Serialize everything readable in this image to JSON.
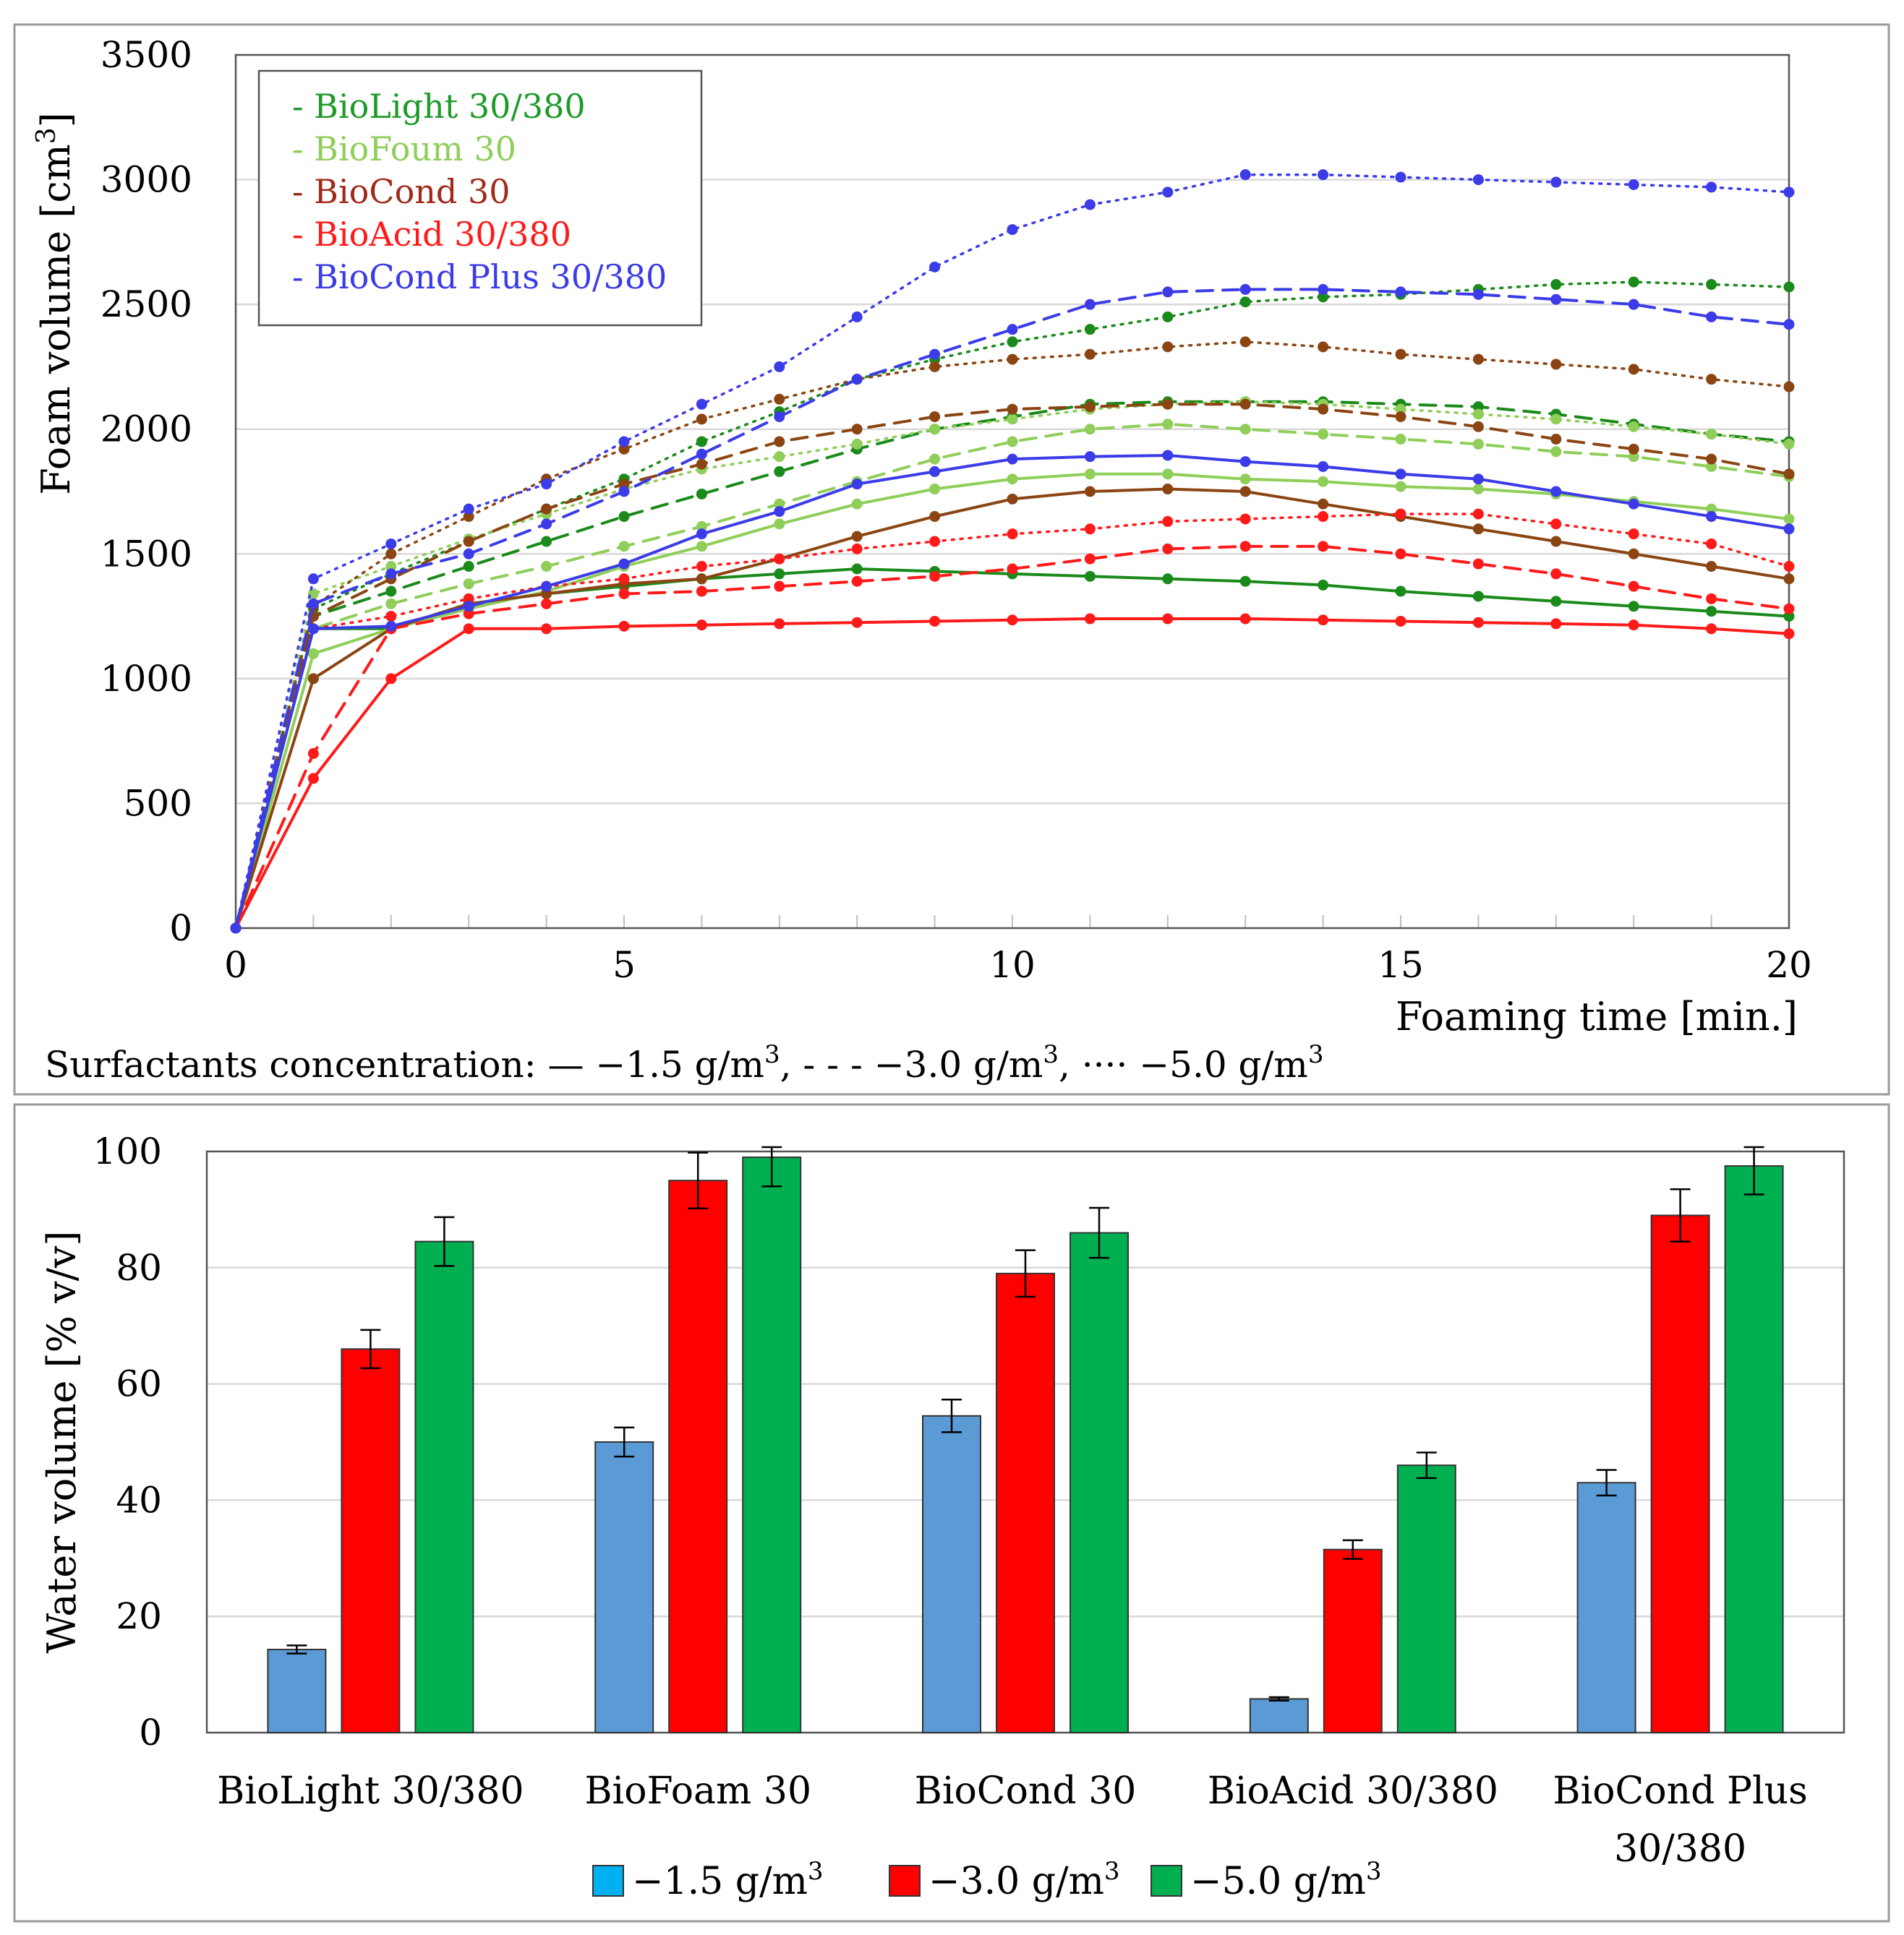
{
  "chart_data": [
    {
      "type": "line",
      "title": "",
      "xlabel": "Foaming time [min.]",
      "ylabel": "Foam volume [cm",
      "ylabel_sup": "3",
      "ylabel_end": "]",
      "xlim": [
        0,
        20
      ],
      "ylim": [
        0,
        3500
      ],
      "xticks": [
        0,
        5,
        10,
        15,
        20
      ],
      "yticks": [
        0,
        500,
        1000,
        1500,
        2000,
        2500,
        3000,
        3500
      ],
      "grid": true,
      "legend_position": "top-left",
      "legend": [
        {
          "label": "- BioLight 30/380",
          "color": "#1e9a2a"
        },
        {
          "label": "- BioFoum 30",
          "color": "#8fce59"
        },
        {
          "label": "- BioCond 30",
          "color": "#a02a1a"
        },
        {
          "label": "- BioAcid 30/380",
          "color": "#ff1a1a"
        },
        {
          "label": "- BioCond Plus 30/380",
          "color": "#3b3be8"
        }
      ],
      "note": {
        "prefix": "Surfactants concentration: ",
        "items": [
          {
            "symbol": "—",
            "text": " −1.5 g/m",
            "sup": "3",
            "sep": ", "
          },
          {
            "symbol": "- - -",
            "text": "  −3.0 g/m",
            "sup": "3",
            "sep": ", "
          },
          {
            "symbol": "····",
            "text": " −5.0 g/m",
            "sup": "3",
            "sep": ""
          }
        ]
      },
      "x": [
        0,
        1,
        2,
        3,
        4,
        5,
        6,
        7,
        8,
        9,
        10,
        11,
        12,
        13,
        14,
        15,
        16,
        17,
        18,
        19,
        20
      ],
      "series": [
        {
          "name": "BioLight 30/380 −1.5 g/m3",
          "color": "#1a8a1a",
          "dash": "solid",
          "values": [
            0,
            1200,
            1200,
            1300,
            1340,
            1370,
            1400,
            1420,
            1440,
            1430,
            1420,
            1410,
            1400,
            1390,
            1375,
            1350,
            1330,
            1310,
            1290,
            1270,
            1250
          ]
        },
        {
          "name": "BioLight 30/380 −3.0 g/m3",
          "color": "#1a8a1a",
          "dash": "dashed",
          "values": [
            0,
            1250,
            1350,
            1450,
            1550,
            1650,
            1740,
            1830,
            1920,
            2000,
            2050,
            2100,
            2110,
            2110,
            2110,
            2100,
            2090,
            2060,
            2020,
            1980,
            1950
          ]
        },
        {
          "name": "BioLight 30/380 −5.0 g/m3",
          "color": "#1a8a1a",
          "dash": "dotted",
          "values": [
            0,
            1280,
            1420,
            1550,
            1680,
            1800,
            1950,
            2070,
            2200,
            2280,
            2350,
            2400,
            2450,
            2510,
            2530,
            2540,
            2560,
            2580,
            2590,
            2580,
            2570
          ]
        },
        {
          "name": "BioFoum 30 −1.5 g/m3",
          "color": "#8fce59",
          "dash": "solid",
          "values": [
            0,
            1100,
            1200,
            1280,
            1350,
            1450,
            1530,
            1620,
            1700,
            1760,
            1800,
            1820,
            1820,
            1800,
            1790,
            1770,
            1760,
            1740,
            1710,
            1680,
            1640
          ]
        },
        {
          "name": "BioFoum 30 −3.0 g/m3",
          "color": "#8fce59",
          "dash": "dashed",
          "values": [
            0,
            1200,
            1300,
            1380,
            1450,
            1530,
            1610,
            1700,
            1790,
            1880,
            1950,
            2000,
            2020,
            2000,
            1980,
            1960,
            1940,
            1910,
            1890,
            1850,
            1810
          ]
        },
        {
          "name": "BioFoum 30 −5.0 g/m3",
          "color": "#8fce59",
          "dash": "dotted",
          "values": [
            0,
            1340,
            1450,
            1560,
            1660,
            1760,
            1840,
            1890,
            1940,
            2000,
            2040,
            2080,
            2100,
            2110,
            2100,
            2080,
            2060,
            2040,
            2010,
            1980,
            1940
          ]
        },
        {
          "name": "BioCond 30 −1.5 g/m3",
          "color": "#8b4513",
          "dash": "solid",
          "values": [
            0,
            1000,
            1200,
            1300,
            1340,
            1380,
            1400,
            1480,
            1570,
            1650,
            1720,
            1750,
            1760,
            1750,
            1700,
            1650,
            1600,
            1550,
            1500,
            1450,
            1400
          ]
        },
        {
          "name": "BioCond 30 −3.0 g/m3",
          "color": "#8b4513",
          "dash": "dashed",
          "values": [
            0,
            1250,
            1400,
            1550,
            1680,
            1780,
            1860,
            1950,
            2000,
            2050,
            2080,
            2090,
            2100,
            2100,
            2080,
            2050,
            2010,
            1960,
            1920,
            1880,
            1820
          ]
        },
        {
          "name": "BioCond 30 −5.0 g/m3",
          "color": "#8b4513",
          "dash": "dotted",
          "values": [
            0,
            1290,
            1500,
            1650,
            1800,
            1920,
            2040,
            2120,
            2200,
            2250,
            2280,
            2300,
            2330,
            2350,
            2330,
            2300,
            2280,
            2260,
            2240,
            2200,
            2170
          ]
        },
        {
          "name": "BioAcid 30/380 −1.5 g/m3",
          "color": "#ff1a1a",
          "dash": "solid",
          "values": [
            0,
            600,
            1000,
            1200,
            1200,
            1210,
            1215,
            1220,
            1225,
            1230,
            1235,
            1240,
            1240,
            1240,
            1235,
            1230,
            1225,
            1220,
            1215,
            1200,
            1180
          ]
        },
        {
          "name": "BioAcid 30/380 −3.0 g/m3",
          "color": "#ff1a1a",
          "dash": "dashed",
          "values": [
            0,
            700,
            1200,
            1260,
            1300,
            1340,
            1350,
            1370,
            1390,
            1410,
            1440,
            1480,
            1520,
            1530,
            1530,
            1500,
            1460,
            1420,
            1370,
            1320,
            1280
          ]
        },
        {
          "name": "BioAcid 30/380 −5.0 g/m3",
          "color": "#ff1a1a",
          "dash": "dotted",
          "values": [
            0,
            1200,
            1250,
            1320,
            1370,
            1400,
            1450,
            1480,
            1520,
            1550,
            1580,
            1600,
            1630,
            1640,
            1650,
            1660,
            1660,
            1620,
            1580,
            1540,
            1450
          ]
        },
        {
          "name": "BioCond Plus 30/380 −1.5 g/m3",
          "color": "#3b3be8",
          "dash": "solid",
          "values": [
            0,
            1200,
            1210,
            1290,
            1370,
            1460,
            1580,
            1670,
            1780,
            1830,
            1880,
            1890,
            1895,
            1870,
            1850,
            1820,
            1800,
            1750,
            1700,
            1650,
            1600
          ]
        },
        {
          "name": "BioCond Plus 30/380 −3.0 g/m3",
          "color": "#3b3be8",
          "dash": "dashed",
          "values": [
            0,
            1300,
            1420,
            1500,
            1620,
            1750,
            1900,
            2050,
            2200,
            2300,
            2400,
            2500,
            2550,
            2560,
            2560,
            2550,
            2540,
            2520,
            2500,
            2450,
            2420
          ]
        },
        {
          "name": "BioCond Plus 30/380 −5.0 g/m3",
          "color": "#3b3be8",
          "dash": "dotted",
          "values": [
            0,
            1400,
            1540,
            1680,
            1780,
            1950,
            2100,
            2250,
            2450,
            2650,
            2800,
            2900,
            2950,
            3020,
            3020,
            3010,
            3000,
            2990,
            2980,
            2970,
            2950
          ]
        }
      ]
    },
    {
      "type": "bar",
      "title": "",
      "xlabel": "",
      "ylabel": "Water volume [% v/v]",
      "ylim": [
        0,
        100
      ],
      "yticks": [
        0,
        20,
        40,
        60,
        80,
        100
      ],
      "grid": true,
      "legend_position": "bottom",
      "categories": [
        [
          "BioLight 30/380"
        ],
        [
          "BioFoam 30"
        ],
        [
          "BioCond 30"
        ],
        [
          "BioAcid 30/380"
        ],
        [
          "BioCond Plus",
          "30/380"
        ]
      ],
      "series": [
        {
          "name": "−1.5 g/m",
          "sup": "3",
          "bar_color": "#5b9bd5",
          "legend_color": "#00b0f0",
          "values": [
            14.3,
            50,
            54.5,
            5.8,
            43
          ],
          "errors": [
            0.7,
            2.5,
            2.8,
            0.3,
            2.2
          ]
        },
        {
          "name": "−3.0 g/m",
          "sup": "3",
          "bar_color": "#ff0000",
          "legend_color": "#ff0000",
          "values": [
            66,
            95,
            79,
            31.5,
            89
          ],
          "errors": [
            3.3,
            4.8,
            4,
            1.6,
            4.5
          ]
        },
        {
          "name": "−5.0 g/m",
          "sup": "3",
          "bar_color": "#00b050",
          "legend_color": "#00b050",
          "values": [
            84.5,
            99,
            86,
            46,
            97.5
          ],
          "errors": [
            4.2,
            5,
            4.3,
            2.2,
            4.9
          ]
        }
      ]
    }
  ]
}
